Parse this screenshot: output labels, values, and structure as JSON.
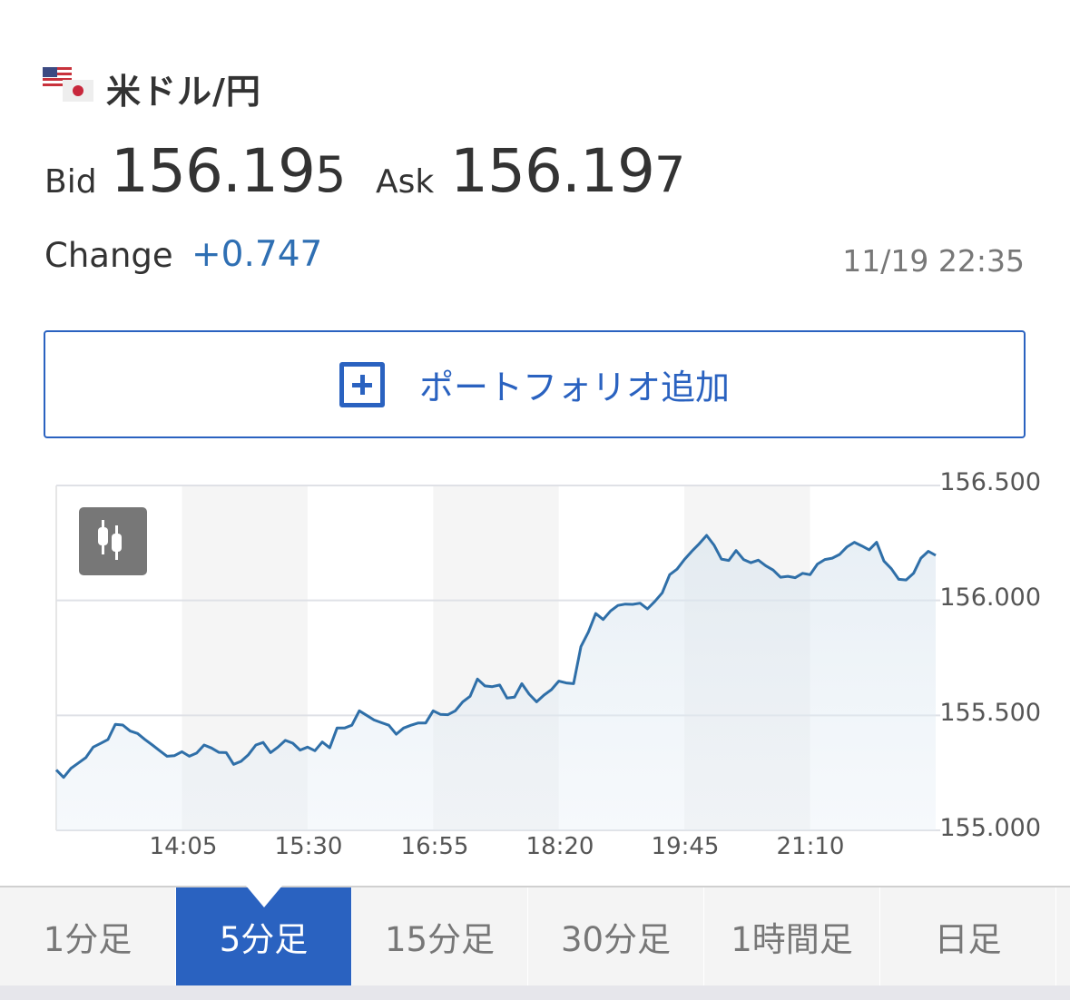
{
  "header": {
    "pair": "米ドル/円",
    "flag_icons": [
      "us-flag-icon",
      "jp-flag-icon"
    ]
  },
  "quote": {
    "bid_label": "Bid",
    "bid_main": "156.19",
    "bid_last": "5",
    "ask_label": "Ask",
    "ask_main": "156.19",
    "ask_last": "7",
    "change_label": "Change",
    "change_value": "+0.747",
    "timestamp": "11/19 22:35"
  },
  "portfolio_button": {
    "label": "ポートフォリオ追加",
    "icon": "plus-square-icon"
  },
  "colors": {
    "accent": "#2a62c0",
    "line": "#2f6fa8",
    "change": "#2f6fb3"
  },
  "chart_data": {
    "type": "area",
    "ylim": [
      155.0,
      156.5
    ],
    "yticks": [
      "156.500",
      "156.000",
      "155.500",
      "155.000"
    ],
    "ytick_values": [
      156.5,
      156.0,
      155.5,
      155.0
    ],
    "xticks": [
      "14:05",
      "15:30",
      "16:55",
      "18:20",
      "19:45",
      "21:10"
    ],
    "grid": true,
    "x": [
      "12:40",
      "12:45",
      "12:50",
      "12:55",
      "13:00",
      "13:05",
      "13:10",
      "13:15",
      "13:20",
      "13:25",
      "13:30",
      "13:35",
      "13:40",
      "13:45",
      "13:50",
      "13:55",
      "14:00",
      "14:05",
      "14:10",
      "14:15",
      "14:20",
      "14:25",
      "14:30",
      "14:35",
      "14:40",
      "14:45",
      "14:50",
      "14:55",
      "15:00",
      "15:05",
      "15:10",
      "15:15",
      "15:20",
      "15:25",
      "15:30",
      "15:35",
      "15:40",
      "15:45",
      "15:50",
      "15:55",
      "16:00",
      "16:05",
      "16:10",
      "16:15",
      "16:20",
      "16:25",
      "16:30",
      "16:35",
      "16:40",
      "16:45",
      "16:50",
      "16:55",
      "17:00",
      "17:05",
      "17:10",
      "17:15",
      "17:20",
      "17:25",
      "17:30",
      "17:35",
      "17:40",
      "17:45",
      "17:50",
      "17:55",
      "18:00",
      "18:05",
      "18:10",
      "18:15",
      "18:20",
      "18:25",
      "18:30",
      "18:35",
      "18:40",
      "18:45",
      "18:50",
      "18:55",
      "19:00",
      "19:05",
      "19:10",
      "19:15",
      "19:20",
      "19:25",
      "19:30",
      "19:35",
      "19:40",
      "19:45",
      "19:50",
      "19:55",
      "20:00",
      "20:05",
      "20:10",
      "20:15",
      "20:20",
      "20:25",
      "20:30",
      "20:35",
      "20:40",
      "20:45",
      "20:50",
      "20:55",
      "21:00",
      "21:05",
      "21:10",
      "21:15",
      "21:20",
      "21:25",
      "21:30",
      "21:35",
      "21:40",
      "21:45",
      "21:50",
      "21:55",
      "22:00",
      "22:05",
      "22:10",
      "22:15",
      "22:20",
      "22:25",
      "22:30",
      "22:35"
    ],
    "y": [
      155.263,
      155.23,
      155.27,
      155.293,
      155.316,
      155.362,
      155.378,
      155.395,
      155.461,
      155.458,
      155.432,
      155.421,
      155.395,
      155.371,
      155.346,
      155.322,
      155.325,
      155.342,
      155.322,
      155.336,
      155.371,
      155.358,
      155.339,
      155.338,
      155.287,
      155.3,
      155.329,
      155.371,
      155.382,
      155.338,
      155.362,
      155.391,
      155.379,
      155.349,
      155.362,
      155.346,
      155.384,
      155.359,
      155.445,
      155.445,
      155.457,
      155.52,
      155.5,
      155.48,
      155.468,
      155.457,
      155.418,
      155.445,
      155.457,
      155.467,
      155.467,
      155.52,
      155.504,
      155.503,
      155.52,
      155.559,
      155.583,
      155.658,
      155.628,
      155.625,
      155.632,
      155.575,
      155.579,
      155.638,
      155.592,
      155.559,
      155.588,
      155.612,
      155.649,
      155.641,
      155.638,
      155.799,
      155.862,
      155.943,
      155.917,
      155.954,
      155.978,
      155.984,
      155.983,
      155.988,
      155.963,
      155.996,
      156.033,
      156.112,
      156.136,
      156.178,
      156.214,
      156.246,
      156.283,
      156.241,
      156.18,
      156.174,
      156.217,
      156.178,
      156.164,
      156.175,
      156.151,
      156.132,
      156.101,
      156.105,
      156.099,
      156.118,
      156.112,
      156.158,
      156.178,
      156.184,
      156.2,
      156.233,
      156.253,
      156.237,
      156.22,
      156.253,
      156.171,
      156.138,
      156.092,
      156.089,
      156.118,
      156.184,
      156.214,
      156.196
    ]
  },
  "chart_toggle": {
    "icon": "candlestick-icon"
  },
  "tabs": [
    {
      "label": "1分足"
    },
    {
      "label": "5分足",
      "active": true
    },
    {
      "label": "15分足"
    },
    {
      "label": "30分足"
    },
    {
      "label": "1時間足"
    },
    {
      "label": "日足"
    }
  ]
}
